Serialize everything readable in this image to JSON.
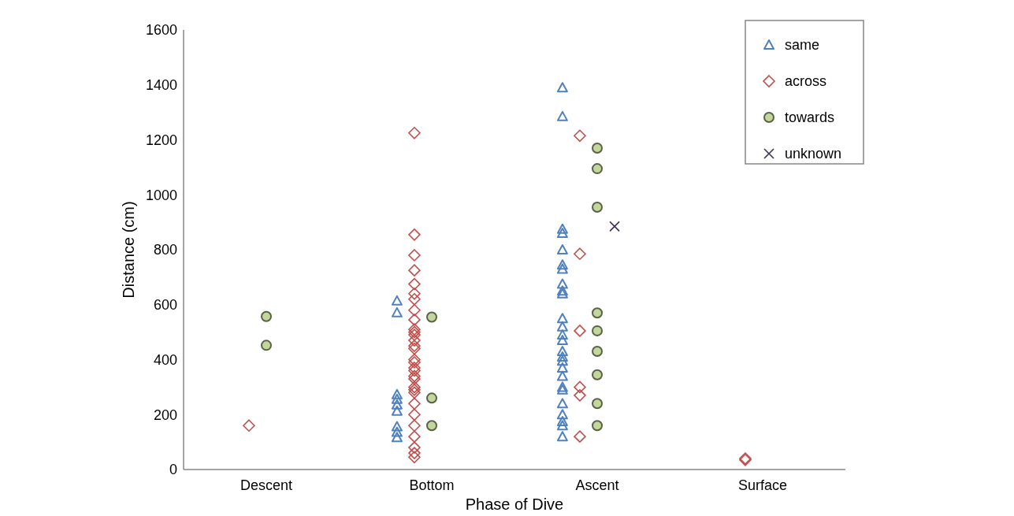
{
  "chart_data": {
    "type": "scatter",
    "xlabel": "Phase of Dive",
    "ylabel": "Distance (cm)",
    "categories": [
      "Descent",
      "Bottom",
      "Ascent",
      "Surface"
    ],
    "ylim": [
      0,
      1600
    ],
    "yticks": [
      0,
      200,
      400,
      600,
      800,
      1000,
      1200,
      1400,
      1600
    ],
    "grid": false,
    "legend": "top right",
    "series": [
      {
        "name": "same",
        "color": "#4f81bd",
        "marker": "triangle",
        "x": [
          "Bottom",
          "Bottom",
          "Bottom",
          "Bottom",
          "Bottom",
          "Bottom",
          "Bottom",
          "Bottom",
          "Bottom",
          "Ascent",
          "Ascent",
          "Ascent",
          "Ascent",
          "Ascent",
          "Ascent",
          "Ascent",
          "Ascent",
          "Ascent",
          "Ascent",
          "Ascent",
          "Ascent",
          "Ascent",
          "Ascent",
          "Ascent",
          "Ascent",
          "Ascent",
          "Ascent",
          "Ascent",
          "Ascent",
          "Ascent",
          "Ascent",
          "Ascent",
          "Ascent",
          "Ascent",
          "Ascent"
        ],
        "values": [
          614,
          571,
          273,
          256,
          236,
          213,
          156,
          136,
          117,
          1390,
          1285,
          875,
          860,
          800,
          745,
          730,
          675,
          650,
          640,
          550,
          520,
          490,
          470,
          430,
          410,
          395,
          370,
          340,
          300,
          290,
          240,
          200,
          175,
          160,
          120
        ]
      },
      {
        "name": "across",
        "color": "#c0504d",
        "marker": "diamond",
        "x": [
          "Descent",
          "Bottom",
          "Bottom",
          "Bottom",
          "Bottom",
          "Bottom",
          "Bottom",
          "Bottom",
          "Bottom",
          "Bottom",
          "Bottom",
          "Bottom",
          "Bottom",
          "Bottom",
          "Bottom",
          "Bottom",
          "Bottom",
          "Bottom",
          "Bottom",
          "Bottom",
          "Bottom",
          "Bottom",
          "Bottom",
          "Bottom",
          "Bottom",
          "Bottom",
          "Bottom",
          "Bottom",
          "Bottom",
          "Bottom",
          "Bottom",
          "Bottom",
          "Ascent",
          "Ascent",
          "Ascent",
          "Ascent",
          "Ascent",
          "Ascent",
          "Surface",
          "Surface"
        ],
        "values": [
          160,
          1225,
          855,
          780,
          725,
          675,
          640,
          620,
          580,
          545,
          510,
          500,
          490,
          470,
          450,
          440,
          400,
          390,
          370,
          360,
          340,
          330,
          300,
          290,
          280,
          240,
          200,
          160,
          120,
          80,
          60,
          45,
          1215,
          785,
          505,
          300,
          270,
          120,
          40,
          35
        ]
      },
      {
        "name": "towards",
        "color": "#c3d69b",
        "marker": "circle",
        "x": [
          "Descent",
          "Descent",
          "Bottom",
          "Bottom",
          "Bottom",
          "Ascent",
          "Ascent",
          "Ascent",
          "Ascent",
          "Ascent",
          "Ascent",
          "Ascent",
          "Ascent",
          "Ascent"
        ],
        "values": [
          557,
          452,
          555,
          260,
          160,
          1170,
          1095,
          955,
          570,
          505,
          430,
          345,
          240,
          160
        ]
      },
      {
        "name": "unknown",
        "color": "#3f3151",
        "marker": "cross",
        "x": [
          "Ascent"
        ],
        "values": [
          885
        ]
      }
    ]
  }
}
